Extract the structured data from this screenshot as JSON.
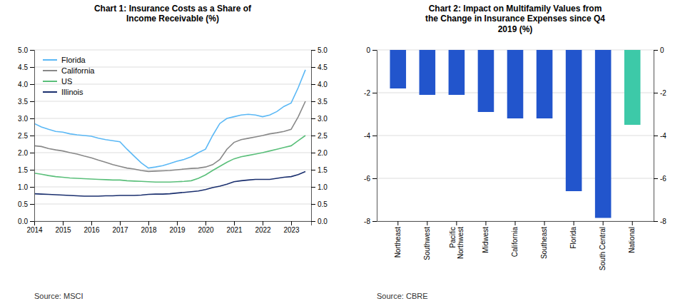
{
  "chart_data": [
    {
      "type": "line",
      "title": "Chart 1: Insurance Costs as a Share of\nIncome Receivable (%)",
      "x": [
        2014.0,
        2014.25,
        2014.5,
        2014.75,
        2015.0,
        2015.25,
        2015.5,
        2015.75,
        2016.0,
        2016.25,
        2016.5,
        2016.75,
        2017.0,
        2017.25,
        2017.5,
        2017.75,
        2018.0,
        2018.25,
        2018.5,
        2018.75,
        2019.0,
        2019.25,
        2019.5,
        2019.75,
        2020.0,
        2020.25,
        2020.5,
        2020.75,
        2021.0,
        2021.25,
        2021.5,
        2021.75,
        2022.0,
        2022.25,
        2022.5,
        2022.75,
        2023.0,
        2023.25,
        2023.5
      ],
      "series": [
        {
          "name": "Florida",
          "color": "#5bb8f5",
          "values": [
            2.85,
            2.75,
            2.68,
            2.62,
            2.6,
            2.55,
            2.52,
            2.5,
            2.48,
            2.42,
            2.38,
            2.35,
            2.32,
            2.1,
            1.9,
            1.7,
            1.55,
            1.58,
            1.62,
            1.68,
            1.75,
            1.8,
            1.88,
            2.0,
            2.1,
            2.5,
            2.85,
            3.0,
            3.05,
            3.1,
            3.12,
            3.1,
            3.05,
            3.1,
            3.2,
            3.35,
            3.45,
            3.9,
            4.42
          ]
        },
        {
          "name": "California",
          "color": "#888888",
          "values": [
            2.2,
            2.18,
            2.12,
            2.08,
            2.05,
            2.0,
            1.96,
            1.9,
            1.85,
            1.78,
            1.72,
            1.65,
            1.6,
            1.55,
            1.52,
            1.48,
            1.45,
            1.46,
            1.47,
            1.48,
            1.5,
            1.52,
            1.54,
            1.55,
            1.58,
            1.65,
            1.8,
            2.1,
            2.3,
            2.38,
            2.42,
            2.46,
            2.5,
            2.55,
            2.58,
            2.62,
            2.68,
            3.05,
            3.5
          ]
        },
        {
          "name": "US",
          "color": "#5abf7a",
          "values": [
            1.4,
            1.37,
            1.33,
            1.3,
            1.28,
            1.26,
            1.25,
            1.24,
            1.23,
            1.22,
            1.21,
            1.2,
            1.2,
            1.18,
            1.17,
            1.16,
            1.15,
            1.14,
            1.14,
            1.14,
            1.15,
            1.16,
            1.18,
            1.25,
            1.35,
            1.48,
            1.6,
            1.72,
            1.82,
            1.88,
            1.92,
            1.96,
            2.0,
            2.05,
            2.1,
            2.15,
            2.2,
            2.35,
            2.5
          ]
        },
        {
          "name": "Illinois",
          "color": "#1a2f6e",
          "values": [
            0.8,
            0.79,
            0.78,
            0.77,
            0.76,
            0.75,
            0.74,
            0.73,
            0.73,
            0.73,
            0.74,
            0.74,
            0.75,
            0.75,
            0.75,
            0.76,
            0.78,
            0.79,
            0.79,
            0.8,
            0.82,
            0.84,
            0.86,
            0.88,
            0.92,
            0.98,
            1.02,
            1.08,
            1.15,
            1.18,
            1.2,
            1.22,
            1.22,
            1.22,
            1.25,
            1.28,
            1.3,
            1.36,
            1.45
          ]
        }
      ],
      "xlim": [
        2014,
        2023.7
      ],
      "xticks": [
        2014,
        2015,
        2016,
        2017,
        2018,
        2019,
        2020,
        2021,
        2022,
        2023
      ],
      "ylim": [
        0.0,
        5.0
      ],
      "yticks": [
        {
          "value": 0.0,
          "label": "0.0"
        },
        0.5,
        {
          "value": 1.0,
          "label": "1.0"
        },
        1.5,
        {
          "value": 2.0,
          "label": "2.0"
        },
        2.5,
        {
          "value": 3.0,
          "label": "3.0"
        },
        3.5,
        {
          "value": 4.0,
          "label": "4.0"
        },
        4.5,
        {
          "value": 5.0,
          "label": "5.0"
        }
      ],
      "y2lim": [
        0.0,
        5.0
      ],
      "y2ticks": [
        {
          "value": 0.0,
          "label": "0.0"
        },
        0.5,
        {
          "value": 1.0,
          "label": "1.0"
        },
        1.5,
        {
          "value": 2.0,
          "label": "2.0"
        },
        2.5,
        {
          "value": 3.0,
          "label": "3.0"
        },
        3.5,
        {
          "value": 4.0,
          "label": "4.0"
        },
        4.5,
        {
          "value": 5.0,
          "label": "5.0"
        }
      ],
      "grid": true,
      "legend": "upper left",
      "annotations": [
        "Source: MSCI"
      ]
    },
    {
      "type": "bar",
      "title": "Chart 2: Impact on Multifamily Values from\nthe Change in Insurance Expenses since Q4\n2019 (%)",
      "categories": [
        "Northeast",
        "Southwest",
        "Pacific\nNorthwest",
        "Midwest",
        "California",
        "Southeast",
        "Florida",
        "South Central",
        "National"
      ],
      "values": [
        -1.8,
        -2.1,
        -2.1,
        -2.9,
        -3.2,
        -3.2,
        -6.6,
        -7.85,
        -3.5
      ],
      "colors": [
        "#2255cc",
        "#2255cc",
        "#2255cc",
        "#2255cc",
        "#2255cc",
        "#2255cc",
        "#2255cc",
        "#2255cc",
        "#3dc9a8"
      ],
      "ylim": [
        -8,
        0
      ],
      "yticks": [
        0,
        -2,
        -4,
        -6,
        -8
      ],
      "y2lim": [
        -8,
        0
      ],
      "y2ticks": [
        0,
        -2,
        -4,
        -6,
        -8
      ],
      "grid": true,
      "annotations": [
        "Source: CBRE"
      ]
    }
  ]
}
